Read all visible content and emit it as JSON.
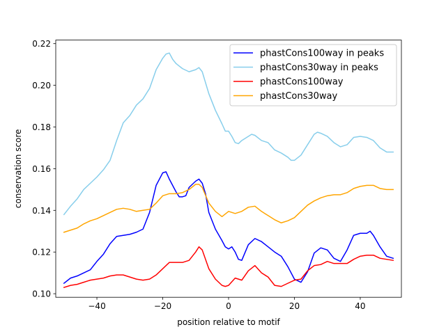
{
  "chart_data": {
    "type": "line",
    "title": "",
    "xlabel": "position relative to motif",
    "ylabel": "conservation score",
    "xlim": [
      -52.5,
      52.5
    ],
    "ylim": [
      0.0983,
      0.2217
    ],
    "xticks": [
      -40,
      -20,
      0,
      20,
      40
    ],
    "yticks": [
      0.1,
      0.12,
      0.14,
      0.16,
      0.18,
      0.2,
      0.22
    ],
    "ytick_labels": [
      "0.10",
      "0.12",
      "0.14",
      "0.16",
      "0.18",
      "0.20",
      "0.22"
    ],
    "legend_position": "top-right",
    "series": [
      {
        "name": "phastCons100way in peaks",
        "color": "#0000ff",
        "points": [
          [
            -50,
            0.105
          ],
          [
            -48,
            0.1075
          ],
          [
            -46,
            0.1085
          ],
          [
            -44,
            0.11
          ],
          [
            -42,
            0.1115
          ],
          [
            -40,
            0.1155
          ],
          [
            -38,
            0.119
          ],
          [
            -36,
            0.124
          ],
          [
            -34,
            0.1275
          ],
          [
            -32,
            0.128
          ],
          [
            -30,
            0.1285
          ],
          [
            -28,
            0.1295
          ],
          [
            -26,
            0.131
          ],
          [
            -24,
            0.139
          ],
          [
            -22,
            0.152
          ],
          [
            -20,
            0.158
          ],
          [
            -19,
            0.1585
          ],
          [
            -18,
            0.155
          ],
          [
            -16,
            0.149
          ],
          [
            -15,
            0.1465
          ],
          [
            -14,
            0.1465
          ],
          [
            -13,
            0.147
          ],
          [
            -12,
            0.151
          ],
          [
            -10,
            0.154
          ],
          [
            -9,
            0.155
          ],
          [
            -8,
            0.153
          ],
          [
            -7,
            0.148
          ],
          [
            -6,
            0.139
          ],
          [
            -4,
            0.131
          ],
          [
            -2,
            0.1255
          ],
          [
            -1,
            0.1225
          ],
          [
            0,
            0.1215
          ],
          [
            1,
            0.1225
          ],
          [
            2,
            0.12
          ],
          [
            3,
            0.1165
          ],
          [
            4,
            0.116
          ],
          [
            6,
            0.1235
          ],
          [
            8,
            0.1265
          ],
          [
            10,
            0.125
          ],
          [
            12,
            0.1225
          ],
          [
            14,
            0.12
          ],
          [
            16,
            0.118
          ],
          [
            18,
            0.113
          ],
          [
            20,
            0.107
          ],
          [
            22,
            0.1055
          ],
          [
            24,
            0.1105
          ],
          [
            26,
            0.1195
          ],
          [
            28,
            0.122
          ],
          [
            30,
            0.121
          ],
          [
            32,
            0.117
          ],
          [
            34,
            0.1155
          ],
          [
            36,
            0.121
          ],
          [
            38,
            0.128
          ],
          [
            40,
            0.129
          ],
          [
            42,
            0.129
          ],
          [
            43,
            0.13
          ],
          [
            44,
            0.128
          ],
          [
            46,
            0.1225
          ],
          [
            48,
            0.118
          ],
          [
            50,
            0.117
          ]
        ]
      },
      {
        "name": "phastCons30way in peaks",
        "color": "#87ceeb",
        "points": [
          [
            -50,
            0.138
          ],
          [
            -48,
            0.142
          ],
          [
            -46,
            0.1455
          ],
          [
            -44,
            0.15
          ],
          [
            -42,
            0.153
          ],
          [
            -40,
            0.156
          ],
          [
            -38,
            0.1595
          ],
          [
            -36,
            0.164
          ],
          [
            -34,
            0.1735
          ],
          [
            -32,
            0.182
          ],
          [
            -30,
            0.1855
          ],
          [
            -28,
            0.1905
          ],
          [
            -26,
            0.1935
          ],
          [
            -24,
            0.1985
          ],
          [
            -22,
            0.2075
          ],
          [
            -20,
            0.213
          ],
          [
            -19,
            0.215
          ],
          [
            -18,
            0.2155
          ],
          [
            -17,
            0.2125
          ],
          [
            -16,
            0.2105
          ],
          [
            -14,
            0.208
          ],
          [
            -12,
            0.2065
          ],
          [
            -10,
            0.2075
          ],
          [
            -9,
            0.2085
          ],
          [
            -8,
            0.2065
          ],
          [
            -6,
            0.196
          ],
          [
            -4,
            0.188
          ],
          [
            -2,
            0.1815
          ],
          [
            -1,
            0.178
          ],
          [
            0,
            0.178
          ],
          [
            1,
            0.1755
          ],
          [
            2,
            0.1725
          ],
          [
            3,
            0.172
          ],
          [
            4,
            0.1735
          ],
          [
            6,
            0.1755
          ],
          [
            7,
            0.1765
          ],
          [
            8,
            0.176
          ],
          [
            10,
            0.1735
          ],
          [
            12,
            0.1725
          ],
          [
            14,
            0.169
          ],
          [
            16,
            0.1675
          ],
          [
            18,
            0.1655
          ],
          [
            19,
            0.164
          ],
          [
            20,
            0.164
          ],
          [
            22,
            0.1665
          ],
          [
            24,
            0.1715
          ],
          [
            26,
            0.1765
          ],
          [
            27,
            0.1775
          ],
          [
            28,
            0.177
          ],
          [
            30,
            0.1755
          ],
          [
            32,
            0.1725
          ],
          [
            34,
            0.1705
          ],
          [
            36,
            0.1715
          ],
          [
            38,
            0.175
          ],
          [
            40,
            0.1755
          ],
          [
            42,
            0.175
          ],
          [
            44,
            0.1735
          ],
          [
            46,
            0.17
          ],
          [
            48,
            0.168
          ],
          [
            50,
            0.168
          ]
        ]
      },
      {
        "name": "phastCons100way",
        "color": "#ff0000",
        "points": [
          [
            -50,
            0.103
          ],
          [
            -48,
            0.104
          ],
          [
            -46,
            0.1045
          ],
          [
            -44,
            0.1055
          ],
          [
            -42,
            0.1065
          ],
          [
            -40,
            0.107
          ],
          [
            -38,
            0.1075
          ],
          [
            -36,
            0.1085
          ],
          [
            -34,
            0.109
          ],
          [
            -32,
            0.109
          ],
          [
            -30,
            0.108
          ],
          [
            -28,
            0.107
          ],
          [
            -26,
            0.1065
          ],
          [
            -24,
            0.107
          ],
          [
            -22,
            0.109
          ],
          [
            -20,
            0.112
          ],
          [
            -18,
            0.115
          ],
          [
            -16,
            0.115
          ],
          [
            -14,
            0.115
          ],
          [
            -12,
            0.116
          ],
          [
            -10,
            0.12
          ],
          [
            -9,
            0.1225
          ],
          [
            -8,
            0.121
          ],
          [
            -6,
            0.112
          ],
          [
            -4,
            0.107
          ],
          [
            -2,
            0.104
          ],
          [
            -1,
            0.1035
          ],
          [
            0,
            0.104
          ],
          [
            2,
            0.1075
          ],
          [
            4,
            0.1065
          ],
          [
            6,
            0.111
          ],
          [
            8,
            0.1135
          ],
          [
            10,
            0.11
          ],
          [
            12,
            0.108
          ],
          [
            14,
            0.104
          ],
          [
            16,
            0.1035
          ],
          [
            18,
            0.105
          ],
          [
            20,
            0.1065
          ],
          [
            22,
            0.107
          ],
          [
            24,
            0.111
          ],
          [
            26,
            0.1135
          ],
          [
            28,
            0.114
          ],
          [
            30,
            0.1155
          ],
          [
            32,
            0.1145
          ],
          [
            34,
            0.1145
          ],
          [
            36,
            0.1145
          ],
          [
            38,
            0.1165
          ],
          [
            40,
            0.118
          ],
          [
            42,
            0.1185
          ],
          [
            44,
            0.1185
          ],
          [
            46,
            0.117
          ],
          [
            48,
            0.1165
          ],
          [
            50,
            0.116
          ]
        ]
      },
      {
        "name": "phastCons30way",
        "color": "#ffa500",
        "points": [
          [
            -50,
            0.1295
          ],
          [
            -48,
            0.1305
          ],
          [
            -46,
            0.1315
          ],
          [
            -44,
            0.1335
          ],
          [
            -42,
            0.135
          ],
          [
            -40,
            0.136
          ],
          [
            -38,
            0.1375
          ],
          [
            -36,
            0.139
          ],
          [
            -34,
            0.1405
          ],
          [
            -32,
            0.141
          ],
          [
            -30,
            0.1405
          ],
          [
            -28,
            0.1395
          ],
          [
            -26,
            0.14
          ],
          [
            -24,
            0.1405
          ],
          [
            -22,
            0.1435
          ],
          [
            -20,
            0.147
          ],
          [
            -18,
            0.148
          ],
          [
            -16,
            0.148
          ],
          [
            -14,
            0.1485
          ],
          [
            -12,
            0.15
          ],
          [
            -10,
            0.1525
          ],
          [
            -9,
            0.1525
          ],
          [
            -8,
            0.151
          ],
          [
            -6,
            0.1435
          ],
          [
            -4,
            0.1395
          ],
          [
            -2,
            0.137
          ],
          [
            0,
            0.1395
          ],
          [
            2,
            0.1385
          ],
          [
            4,
            0.1395
          ],
          [
            6,
            0.1415
          ],
          [
            8,
            0.142
          ],
          [
            10,
            0.1395
          ],
          [
            12,
            0.1375
          ],
          [
            14,
            0.1355
          ],
          [
            16,
            0.134
          ],
          [
            18,
            0.135
          ],
          [
            20,
            0.1365
          ],
          [
            22,
            0.1395
          ],
          [
            24,
            0.1425
          ],
          [
            26,
            0.1445
          ],
          [
            28,
            0.146
          ],
          [
            30,
            0.147
          ],
          [
            32,
            0.1475
          ],
          [
            34,
            0.1475
          ],
          [
            36,
            0.1485
          ],
          [
            38,
            0.1505
          ],
          [
            40,
            0.1515
          ],
          [
            42,
            0.152
          ],
          [
            44,
            0.152
          ],
          [
            46,
            0.1505
          ],
          [
            48,
            0.15
          ],
          [
            50,
            0.15
          ]
        ]
      }
    ]
  }
}
